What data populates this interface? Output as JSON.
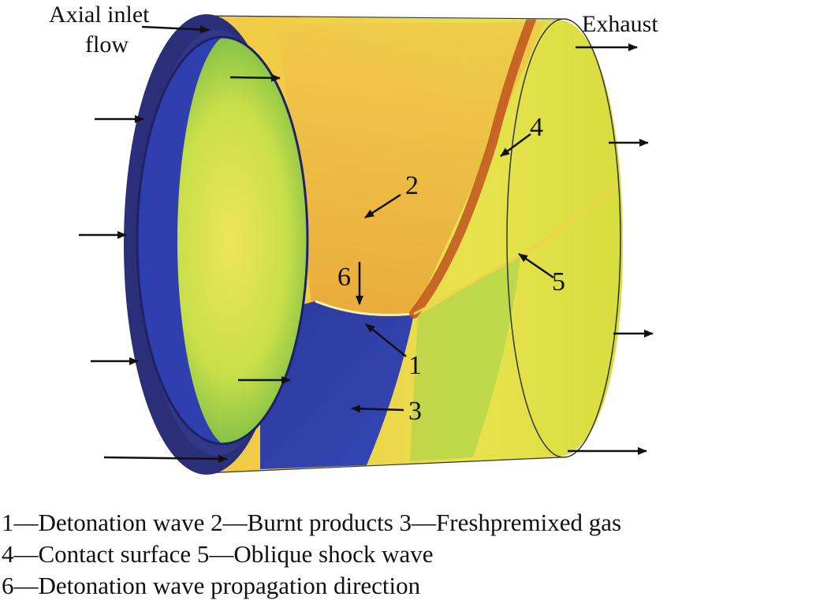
{
  "labels": {
    "inlet_line1": "Axial inlet",
    "inlet_line2": "flow",
    "exhaust": "Exhaust"
  },
  "callouts": {
    "n1": "1",
    "n2": "2",
    "n3": "3",
    "n4": "4",
    "n5": "5",
    "n6": "6"
  },
  "legend": {
    "line1": "1—Detonation wave  2—Burnt products  3—Freshpremixed gas",
    "line2": "4—Contact surface 5—Oblique shock wave",
    "line3": "6—Detonation wave propagation direction"
  },
  "colors": {
    "ring": "#2b2f7a",
    "fresh_gas": "#2f3fae",
    "burnt": "#e9b23a",
    "contact": "#c0531f",
    "yellow": "#e6e14a",
    "green": "#8fcf45"
  }
}
